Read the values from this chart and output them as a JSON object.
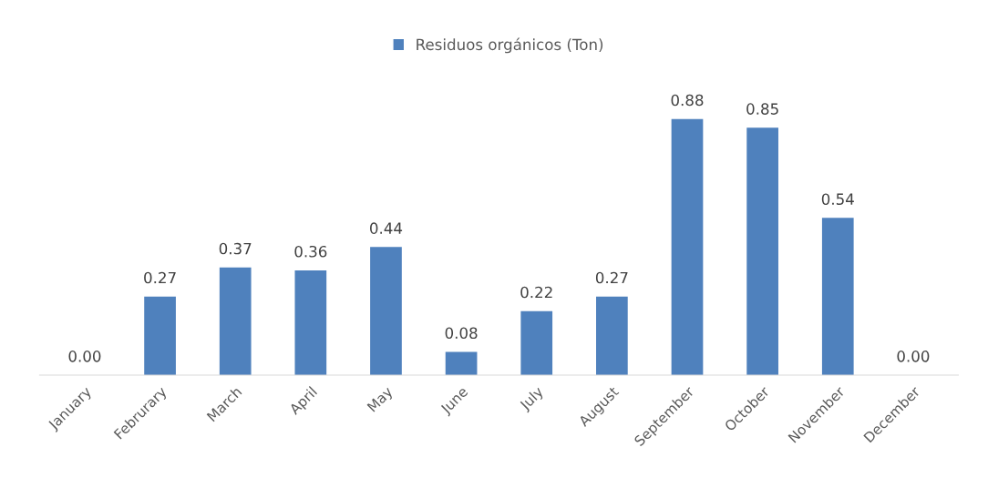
{
  "chart_data": {
    "type": "bar",
    "categories": [
      "January",
      "Februrary",
      "March",
      "April",
      "May",
      "June",
      "July",
      "August",
      "September",
      "October",
      "November",
      "December"
    ],
    "series": [
      {
        "name": "Residuos orgánicos (Ton)",
        "color": "#4f81bd",
        "values": [
          0.0,
          0.27,
          0.37,
          0.36,
          0.44,
          0.08,
          0.22,
          0.27,
          0.88,
          0.85,
          0.54,
          0.0
        ],
        "value_labels": [
          "0.00",
          "0.27",
          "0.37",
          "0.36",
          "0.44",
          "0.08",
          "0.22",
          "0.27",
          "0.88",
          "0.85",
          "0.54",
          "0.00"
        ]
      }
    ],
    "legend": "top",
    "grid": false,
    "tick_labels": "x"
  }
}
